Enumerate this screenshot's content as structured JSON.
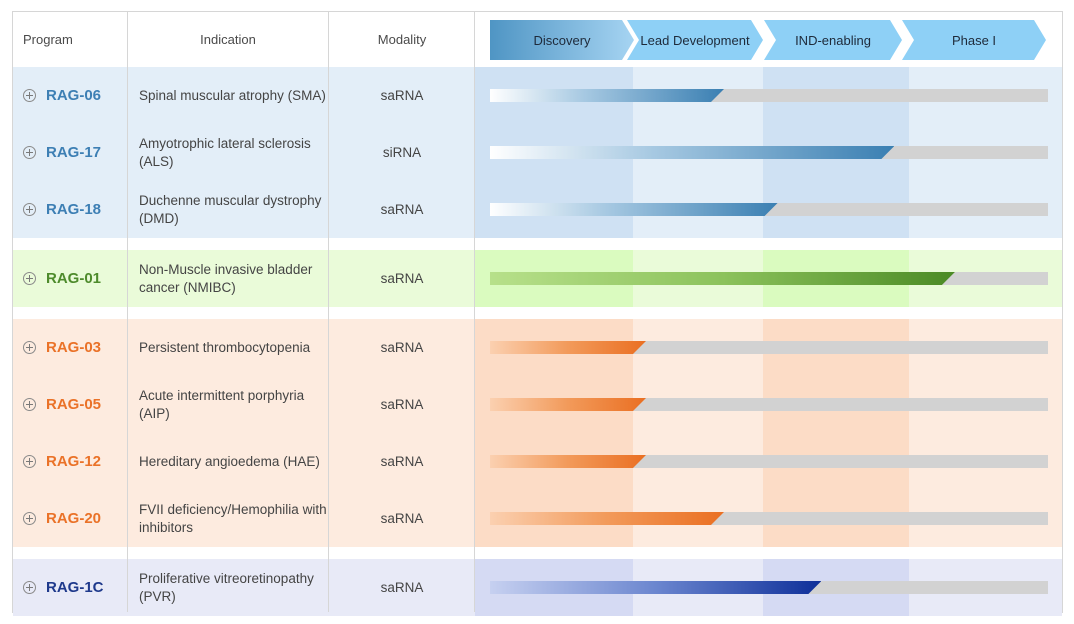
{
  "header": {
    "program": "Program",
    "indication": "Indication",
    "modality": "Modality"
  },
  "colors": {
    "blue": "#3d7fb4",
    "green": "#4e8b2c",
    "orange": "#ea7228",
    "navy": "#1f3a8c"
  },
  "chart_data": {
    "type": "bar",
    "title": "",
    "phases": [
      "Discovery",
      "Lead Development",
      "IND-enabling",
      "Phase I"
    ],
    "xlim": [
      0,
      4
    ],
    "x_unit": "development phase (each phase = 1.0)",
    "groups": [
      {
        "name": "blue",
        "programs": [
          {
            "program": "RAG-06",
            "indication": "Spinal muscular atrophy (SMA)",
            "modality": "saRNA",
            "progress": 1.7
          },
          {
            "program": "RAG-17",
            "indication": "Amyotrophic lateral sclerosis (ALS)",
            "modality": "siRNA",
            "progress": 2.9
          },
          {
            "program": "RAG-18",
            "indication": "Duchenne muscular dystrophy (DMD)",
            "modality": "saRNA",
            "progress": 2.1
          }
        ]
      },
      {
        "name": "green",
        "programs": [
          {
            "program": "RAG-01",
            "indication": "Non-Muscle invasive bladder cancer (NMIBC)",
            "modality": "saRNA",
            "progress": 3.3
          }
        ]
      },
      {
        "name": "orange",
        "programs": [
          {
            "program": "RAG-03",
            "indication": "Persistent thrombocytopenia",
            "modality": "saRNA",
            "progress": 1.1
          },
          {
            "program": "RAG-05",
            "indication": "Acute intermittent porphyria (AIP)",
            "modality": "saRNA",
            "progress": 1.1
          },
          {
            "program": "RAG-12",
            "indication": "Hereditary angioedema (HAE)",
            "modality": "saRNA",
            "progress": 1.1
          },
          {
            "program": "RAG-20",
            "indication": "FVII deficiency/Hemophilia with inhibitors",
            "modality": "saRNA",
            "progress": 1.7
          }
        ]
      },
      {
        "name": "navy",
        "programs": [
          {
            "program": "RAG-1C",
            "indication": "Proliferative vitreoretinopathy (PVR)",
            "modality": "saRNA",
            "progress": 2.4
          }
        ]
      }
    ]
  }
}
